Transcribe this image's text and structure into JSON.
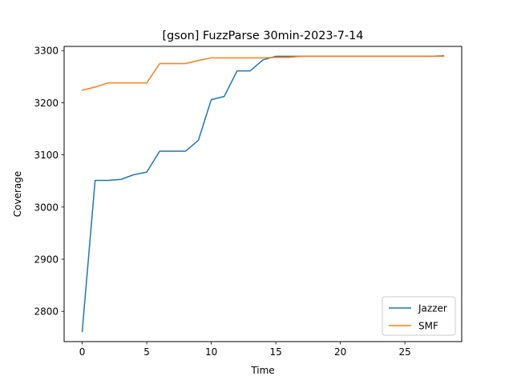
{
  "chart_data": {
    "type": "line",
    "title": "[gson] FuzzParse 30min-2023-7-14",
    "xlabel": "Time",
    "ylabel": "Coverage",
    "xlim": [
      -1.4,
      29.4
    ],
    "ylim": [
      2742,
      3308
    ],
    "xticks": [
      0,
      5,
      10,
      15,
      20,
      25
    ],
    "yticks": [
      2800,
      2900,
      3000,
      3100,
      3200,
      3300
    ],
    "grid": false,
    "legend_position": "lower-right",
    "series": [
      {
        "name": "Jazzer",
        "color": "#1f77b4",
        "x": [
          0,
          1,
          2,
          3,
          4,
          5,
          6,
          7,
          8,
          9,
          10,
          11,
          12,
          13,
          14,
          15,
          16,
          17,
          18,
          19,
          20,
          21,
          22,
          23,
          24,
          25,
          26,
          27,
          28
        ],
        "y": [
          2761,
          3051,
          3051,
          3053,
          3062,
          3067,
          3107,
          3107,
          3107,
          3128,
          3206,
          3212,
          3261,
          3261,
          3282,
          3289,
          3289,
          3289,
          3289,
          3289,
          3289,
          3289,
          3289,
          3289,
          3289,
          3289,
          3289,
          3289,
          3290
        ]
      },
      {
        "name": "SMF",
        "color": "#ff7f0e",
        "x": [
          0,
          1,
          2,
          3,
          4,
          5,
          6,
          7,
          8,
          9,
          10,
          11,
          12,
          13,
          14,
          15,
          16,
          17,
          18,
          19,
          20,
          21,
          22,
          23,
          24,
          25,
          26,
          27,
          28
        ],
        "y": [
          3224,
          3230,
          3238,
          3238,
          3238,
          3238,
          3275,
          3275,
          3275,
          3281,
          3286,
          3286,
          3286,
          3286,
          3286,
          3287,
          3287,
          3289,
          3289,
          3289,
          3289,
          3289,
          3289,
          3289,
          3289,
          3289,
          3289,
          3289,
          3289
        ]
      }
    ]
  }
}
